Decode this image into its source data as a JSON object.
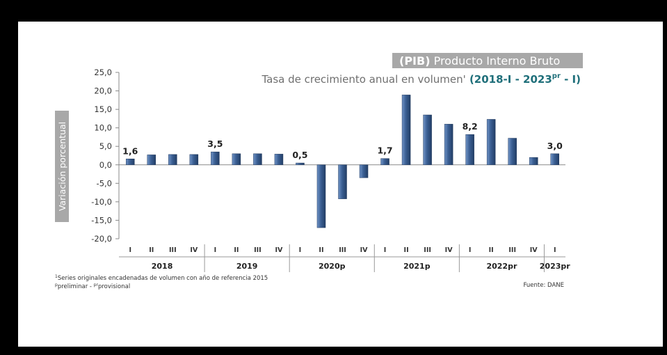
{
  "chart_data": {
    "type": "bar",
    "title_bold": "(PIB)",
    "title_rest": " Producto Interno Bruto",
    "subtitle_prefix": "Tasa de crecimiento anual en volumen",
    "subtitle_mark": "'",
    "subtitle_range_start": " (2018-I - 2023",
    "subtitle_range_sup": "pr",
    "subtitle_range_end": " - I)",
    "ylabel": "Variación porcentual",
    "ylim": [
      -20,
      25
    ],
    "yticks": [
      "25,0",
      "20,0",
      "15,0",
      "10,0",
      "5,0",
      "0,0",
      "-5,0",
      "-10,0",
      "-15,0",
      "-20,0"
    ],
    "ytick_values": [
      25,
      20,
      15,
      10,
      5,
      0,
      -5,
      -10,
      -15,
      -20
    ],
    "categories": [
      "I",
      "II",
      "III",
      "IV",
      "I",
      "II",
      "III",
      "IV",
      "I",
      "II",
      "III",
      "IV",
      "I",
      "II",
      "III",
      "IV",
      "I",
      "II",
      "III",
      "IV",
      "I"
    ],
    "values": [
      1.6,
      2.7,
      2.8,
      2.8,
      3.5,
      3.0,
      3.0,
      2.9,
      0.5,
      -17.0,
      -9.2,
      -3.5,
      1.7,
      18.9,
      13.5,
      11.0,
      8.2,
      12.3,
      7.2,
      2.0,
      3.0
    ],
    "data_labels": [
      {
        "index": 0,
        "text": "1,6"
      },
      {
        "index": 4,
        "text": "3,5"
      },
      {
        "index": 8,
        "text": "0,5"
      },
      {
        "index": 12,
        "text": "1,7"
      },
      {
        "index": 16,
        "text": "8,2"
      },
      {
        "index": 20,
        "text": "3,0"
      }
    ],
    "groups": [
      {
        "label": "2018",
        "start": 0,
        "count": 4
      },
      {
        "label": "2019",
        "start": 4,
        "count": 4
      },
      {
        "label": "2020p",
        "start": 8,
        "count": 4
      },
      {
        "label": "2021p",
        "start": 12,
        "count": 4
      },
      {
        "label": "2022pr",
        "start": 16,
        "count": 4
      },
      {
        "label": "2023pr",
        "start": 20,
        "count": 1
      }
    ],
    "bar_color": "#3b5f93",
    "footnote_1_sup": "1",
    "footnote_1": "Series originales encadenadas de volumen con año de referencia 2015",
    "footnote_2_sup1": "p",
    "footnote_2_a": "preliminar - ",
    "footnote_2_sup2": "pr",
    "footnote_2_b": "provisional",
    "source": "Fuente: DANE",
    "grid": false
  }
}
